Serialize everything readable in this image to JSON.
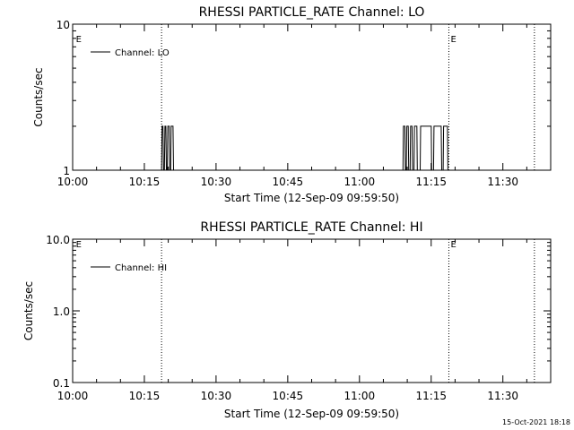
{
  "footer_timestamp": "15-Oct-2021 18:18",
  "chart_data": [
    {
      "type": "line",
      "title": "RHESSI PARTICLE_RATE Channel: LO",
      "xlabel": "Start Time (12-Sep-09 09:59:50)",
      "ylabel": "Counts/sec",
      "yscale": "log",
      "ylim": [
        1,
        10
      ],
      "yticks": [
        {
          "v": 1,
          "label": "1"
        },
        {
          "v": 10,
          "label": "10"
        }
      ],
      "xlim_minutes": [
        0,
        100
      ],
      "xticks": [
        {
          "m": 0,
          "label": "10:00"
        },
        {
          "m": 15,
          "label": "10:15"
        },
        {
          "m": 30,
          "label": "10:30"
        },
        {
          "m": 45,
          "label": "10:45"
        },
        {
          "m": 60,
          "label": "11:00"
        },
        {
          "m": 75,
          "label": "11:15"
        },
        {
          "m": 90,
          "label": "11:30"
        }
      ],
      "legend": {
        "entry": "Channel: LO",
        "position": "top-left"
      },
      "markers": [
        {
          "m": 0.3,
          "label": "E",
          "line": false
        },
        {
          "m": 18.6,
          "label": "",
          "line": true
        },
        {
          "m": 78.7,
          "label": "E",
          "line": true
        },
        {
          "m": 96.6,
          "label": "",
          "line": true
        }
      ],
      "series": [
        {
          "name": "Channel: LO",
          "points": [
            [
              18.6,
              1
            ],
            [
              18.7,
              2
            ],
            [
              18.9,
              2
            ],
            [
              19.0,
              1
            ],
            [
              19.2,
              1
            ],
            [
              19.3,
              2
            ],
            [
              19.5,
              2
            ],
            [
              19.6,
              1
            ],
            [
              19.8,
              1
            ],
            [
              19.9,
              2
            ],
            [
              20.2,
              2
            ],
            [
              20.3,
              1
            ],
            [
              20.5,
              1
            ],
            [
              20.6,
              2
            ],
            [
              21.0,
              2
            ],
            [
              21.1,
              1
            ],
            [
              21.4,
              1
            ],
            [
              69.1,
              1
            ],
            [
              69.2,
              2
            ],
            [
              69.5,
              2
            ],
            [
              69.6,
              1
            ],
            [
              69.8,
              1
            ],
            [
              69.9,
              2
            ],
            [
              70.2,
              2
            ],
            [
              70.3,
              1
            ],
            [
              70.6,
              1
            ],
            [
              70.7,
              2
            ],
            [
              71.0,
              2
            ],
            [
              71.1,
              1
            ],
            [
              71.4,
              1
            ],
            [
              71.5,
              2
            ],
            [
              72.0,
              2
            ],
            [
              72.1,
              1
            ],
            [
              72.7,
              1
            ],
            [
              72.8,
              2
            ],
            [
              75.0,
              2
            ],
            [
              75.1,
              1
            ],
            [
              75.5,
              1
            ],
            [
              75.6,
              2
            ],
            [
              77.1,
              2
            ],
            [
              77.2,
              1
            ],
            [
              77.5,
              1
            ],
            [
              77.6,
              2
            ],
            [
              78.4,
              2
            ],
            [
              78.5,
              1
            ],
            [
              79.0,
              1
            ]
          ]
        }
      ]
    },
    {
      "type": "line",
      "title": "RHESSI PARTICLE_RATE Channel: HI",
      "xlabel": "Start Time (12-Sep-09 09:59:50)",
      "ylabel": "Counts/sec",
      "yscale": "log",
      "ylim": [
        0.1,
        10
      ],
      "yticks": [
        {
          "v": 0.1,
          "label": "0.1"
        },
        {
          "v": 1,
          "label": "1.0"
        },
        {
          "v": 10,
          "label": "10.0"
        }
      ],
      "xlim_minutes": [
        0,
        100
      ],
      "xticks": [
        {
          "m": 0,
          "label": "10:00"
        },
        {
          "m": 15,
          "label": "10:15"
        },
        {
          "m": 30,
          "label": "10:30"
        },
        {
          "m": 45,
          "label": "10:45"
        },
        {
          "m": 60,
          "label": "11:00"
        },
        {
          "m": 75,
          "label": "11:15"
        },
        {
          "m": 90,
          "label": "11:30"
        }
      ],
      "legend": {
        "entry": "Channel: HI",
        "position": "top-left"
      },
      "markers": [
        {
          "m": 0.3,
          "label": "E",
          "line": false
        },
        {
          "m": 18.6,
          "label": "",
          "line": true
        },
        {
          "m": 78.7,
          "label": "E",
          "line": true
        },
        {
          "m": 96.6,
          "label": "",
          "line": true
        }
      ],
      "series": [
        {
          "name": "Channel: HI",
          "points": []
        }
      ]
    }
  ]
}
